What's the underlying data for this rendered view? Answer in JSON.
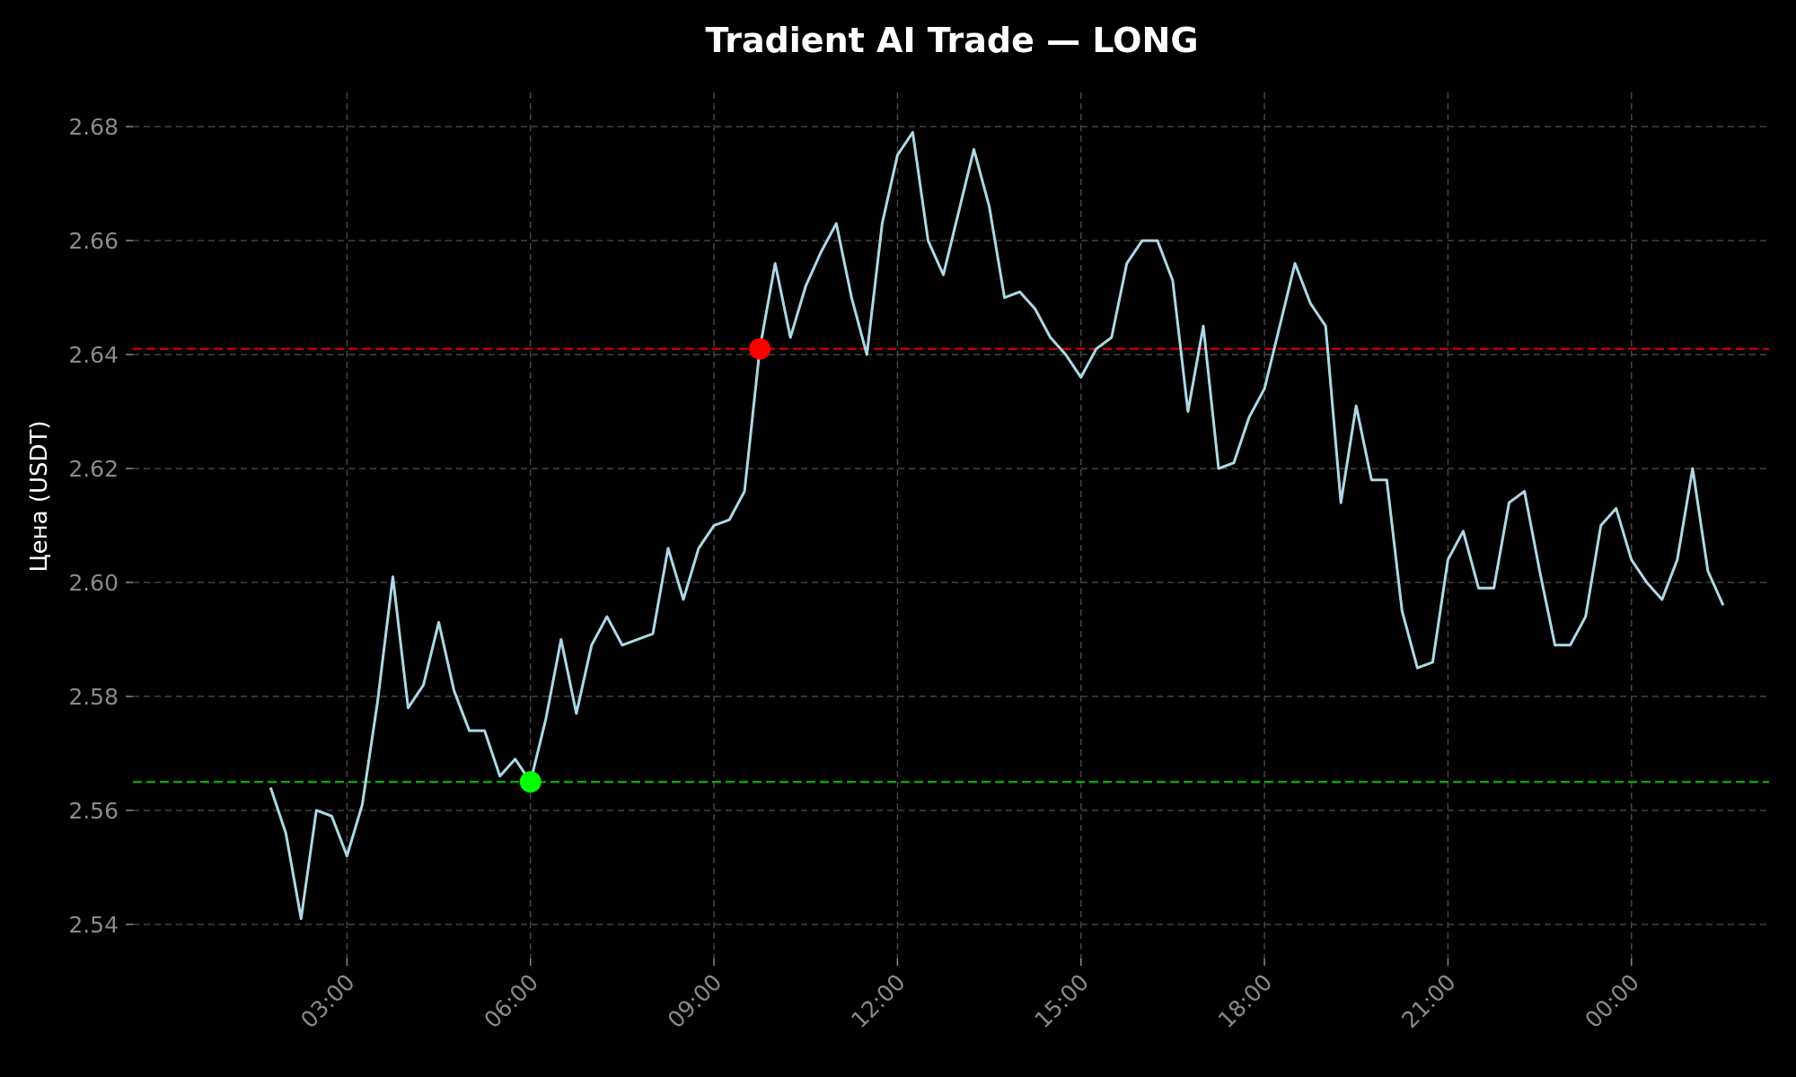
{
  "chart_data": {
    "type": "line",
    "title": "Tradient AI Trade — LONG",
    "xlabel": "",
    "ylabel": "Цена (USDT)",
    "x_ticks": [
      {
        "label": "03:00",
        "hours": 3
      },
      {
        "label": "06:00",
        "hours": 6
      },
      {
        "label": "09:00",
        "hours": 9
      },
      {
        "label": "12:00",
        "hours": 12
      },
      {
        "label": "15:00",
        "hours": 15
      },
      {
        "label": "18:00",
        "hours": 18
      },
      {
        "label": "21:00",
        "hours": 21
      },
      {
        "label": "00:00",
        "hours": 24
      }
    ],
    "y_ticks": [
      2.54,
      2.56,
      2.58,
      2.6,
      2.62,
      2.64,
      2.66,
      2.68
    ],
    "xlim_hours": [
      -0.5,
      26.25
    ],
    "ylim": [
      2.534,
      2.686
    ],
    "grid": true,
    "series": [
      {
        "color": "#add8e6",
        "x_hours": [
          1.75,
          2.0,
          2.25,
          2.5,
          2.75,
          3.0,
          3.25,
          3.5,
          3.75,
          4.0,
          4.25,
          4.5,
          4.75,
          5.0,
          5.25,
          5.5,
          5.75,
          6.0,
          6.25,
          6.5,
          6.75,
          7.0,
          7.25,
          7.5,
          7.75,
          8.0,
          8.25,
          8.5,
          8.75,
          9.0,
          9.25,
          9.5,
          9.75,
          10.0,
          10.25,
          10.5,
          10.75,
          11.0,
          11.25,
          11.5,
          11.75,
          12.0,
          12.25,
          12.5,
          12.75,
          13.0,
          13.25,
          13.5,
          13.75,
          14.0,
          14.25,
          14.5,
          14.75,
          15.0,
          15.25,
          15.5,
          15.75,
          16.0,
          16.25,
          16.5,
          16.75,
          17.0,
          17.25,
          17.5,
          17.75,
          18.0,
          18.25,
          18.5,
          18.75,
          19.0,
          19.25,
          19.5,
          19.75,
          20.0,
          20.25,
          20.5,
          20.75,
          21.0,
          21.25,
          21.5,
          21.75,
          22.0,
          22.25,
          22.5,
          22.75,
          23.0,
          23.25,
          23.5,
          23.75,
          24.0,
          24.25,
          24.5,
          24.75,
          25.0,
          25.25,
          25.5
        ],
        "y": [
          2.564,
          2.556,
          2.541,
          2.56,
          2.559,
          2.552,
          2.561,
          2.579,
          2.601,
          2.578,
          2.582,
          2.593,
          2.581,
          2.574,
          2.574,
          2.566,
          2.569,
          2.565,
          2.576,
          2.59,
          2.577,
          2.589,
          2.594,
          2.589,
          2.59,
          2.591,
          2.606,
          2.597,
          2.606,
          2.61,
          2.611,
          2.616,
          2.641,
          2.656,
          2.643,
          2.652,
          2.658,
          2.663,
          2.65,
          2.64,
          2.663,
          2.675,
          2.679,
          2.66,
          2.654,
          2.665,
          2.676,
          2.666,
          2.65,
          2.651,
          2.648,
          2.643,
          2.64,
          2.636,
          2.641,
          2.643,
          2.656,
          2.66,
          2.66,
          2.653,
          2.63,
          2.645,
          2.62,
          2.621,
          2.629,
          2.634,
          2.645,
          2.656,
          2.649,
          2.645,
          2.614,
          2.631,
          2.618,
          2.618,
          2.595,
          2.585,
          2.586,
          2.604,
          2.609,
          2.599,
          2.599,
          2.614,
          2.616,
          2.602,
          2.589,
          2.589,
          2.594,
          2.61,
          2.613,
          2.604,
          2.6,
          2.597,
          2.604,
          2.62,
          2.602,
          2.596
        ]
      }
    ],
    "reference_lines": [
      {
        "y": 2.641,
        "color": "#d90000",
        "style": "dashed"
      },
      {
        "y": 2.565,
        "color": "#00bb00",
        "style": "dashed"
      }
    ],
    "markers": [
      {
        "x_hours": 6.0,
        "y": 2.565,
        "color": "#00ff00"
      },
      {
        "x_hours": 9.75,
        "y": 2.641,
        "color": "#ff0000"
      }
    ]
  }
}
